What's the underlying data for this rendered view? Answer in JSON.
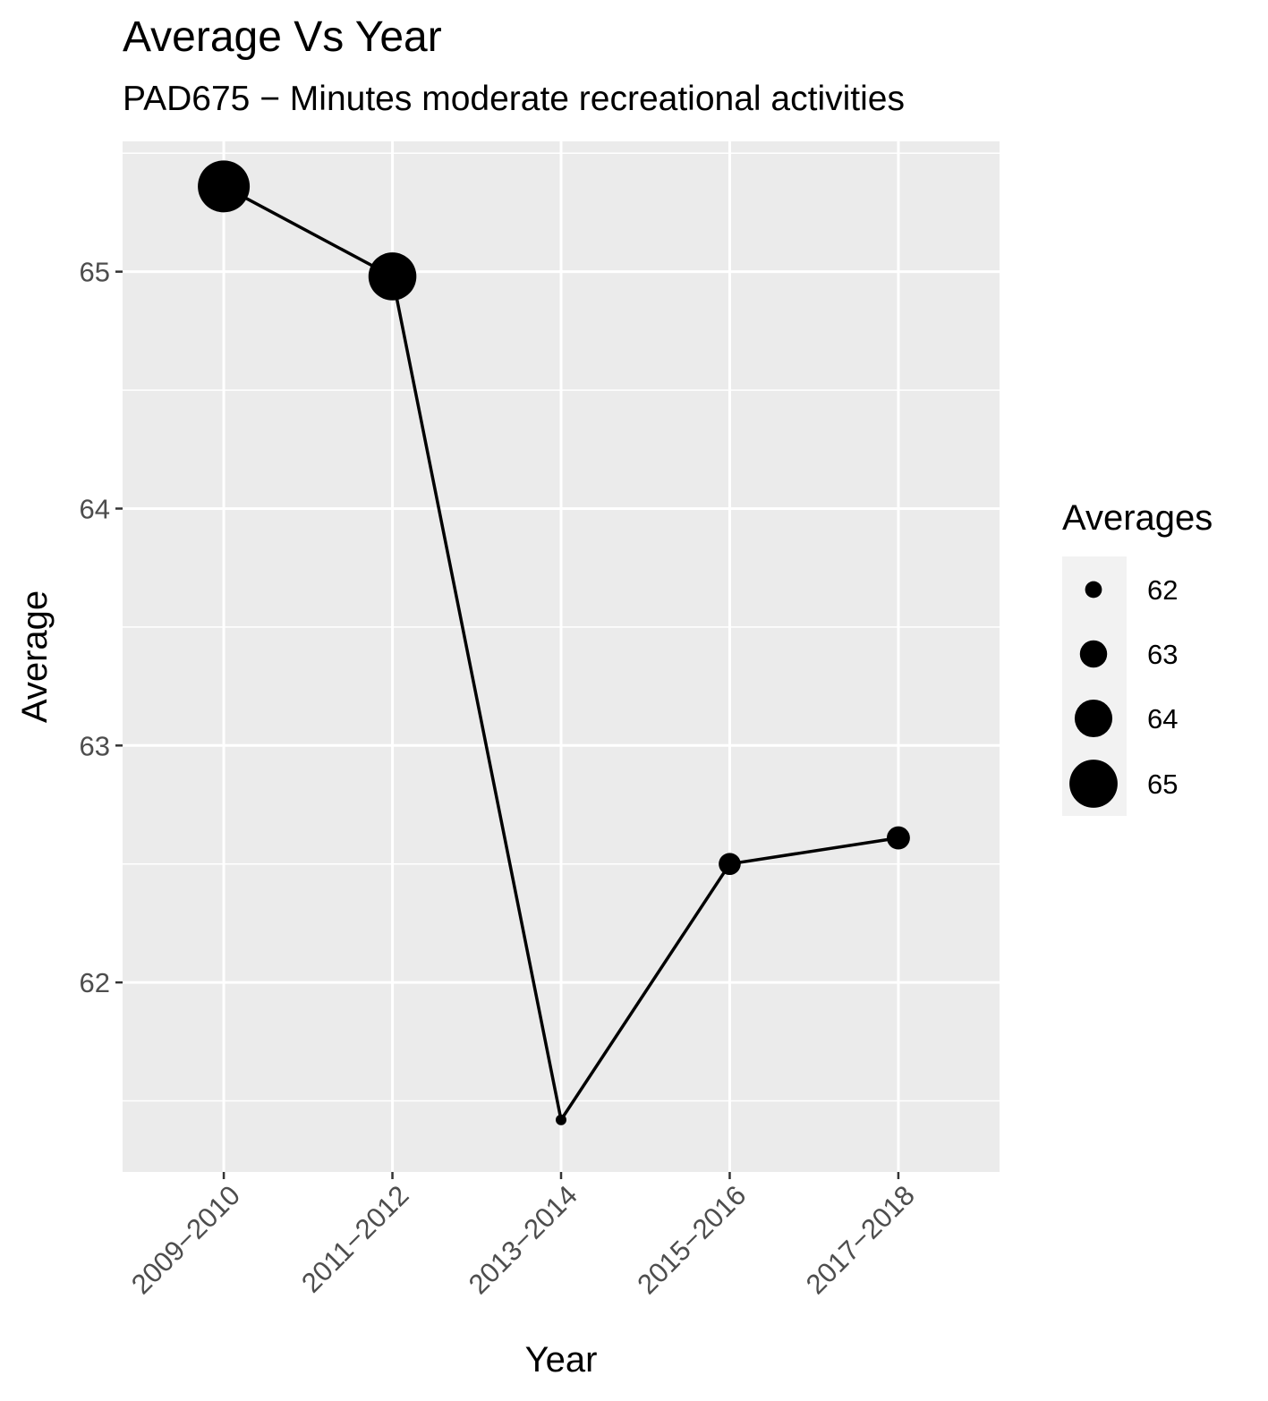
{
  "chart_data": {
    "type": "line",
    "title": "Average Vs Year",
    "subtitle": "PAD675 − Minutes moderate recreational activities",
    "xlabel": "Year",
    "ylabel": "Average",
    "categories": [
      "2009−2010",
      "2011−2012",
      "2013−2014",
      "2015−2016",
      "2017−2018"
    ],
    "values": [
      65.36,
      64.98,
      61.42,
      62.5,
      62.61
    ],
    "ylim": [
      61.2,
      65.55
    ],
    "y_ticks": [
      62,
      63,
      64,
      65
    ],
    "grid": true,
    "point_size_mapped_to": "Averages",
    "legend": {
      "title": "Averages",
      "position": "right",
      "items": [
        "62",
        "63",
        "64",
        "65"
      ]
    },
    "colors": {
      "panel": "#ebebeb",
      "grid": "#ffffff",
      "line": "#000000",
      "points": "#000000",
      "tick_text": "#4d4d4d"
    }
  }
}
